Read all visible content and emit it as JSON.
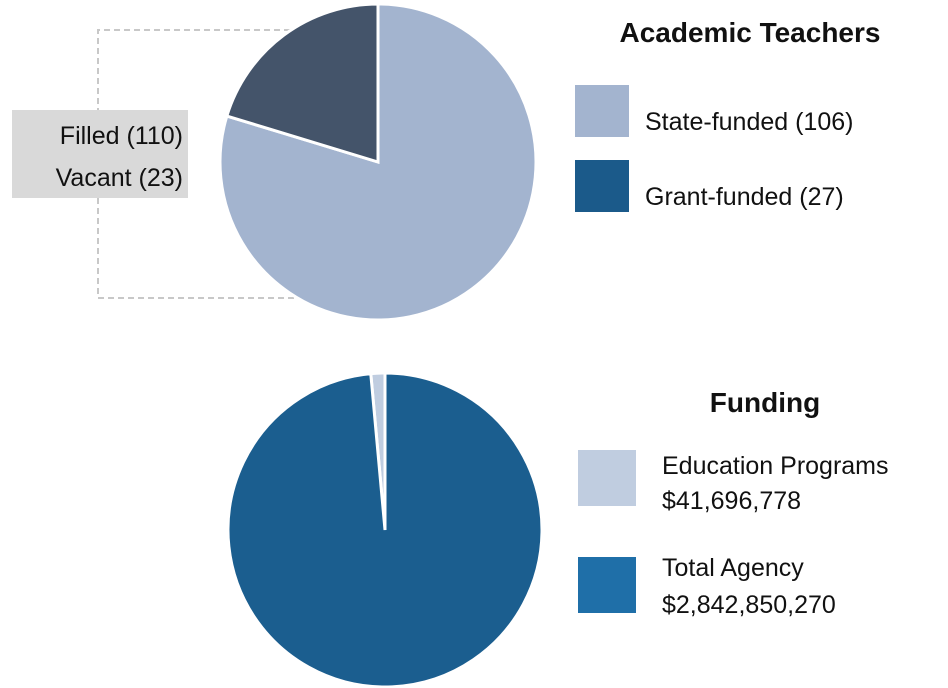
{
  "chart_data": [
    {
      "type": "pie",
      "title": "Academic Teachers",
      "categories": [
        "State-funded (106)",
        "Grant-funded (27)"
      ],
      "values": [
        106,
        27
      ],
      "colors": [
        "#a3b4cf",
        "#44546a"
      ],
      "legend_colors": [
        "#a3b4cf",
        "#1b5a8a"
      ],
      "direction": "clockwise",
      "annotations": [
        "Filled (110)",
        "Vacant (23)"
      ]
    },
    {
      "type": "pie",
      "title": "Funding",
      "categories": [
        "Education Programs",
        "Total Agency"
      ],
      "values": [
        41696778,
        2842850270
      ],
      "value_labels": [
        "$41,696,778",
        "$2,842,850,270"
      ],
      "colors": [
        "#c0cde0",
        "#1b5e8f"
      ],
      "legend_colors": [
        "#c0cde0",
        "#1f6fa8"
      ],
      "direction": "counterclockwise"
    }
  ]
}
